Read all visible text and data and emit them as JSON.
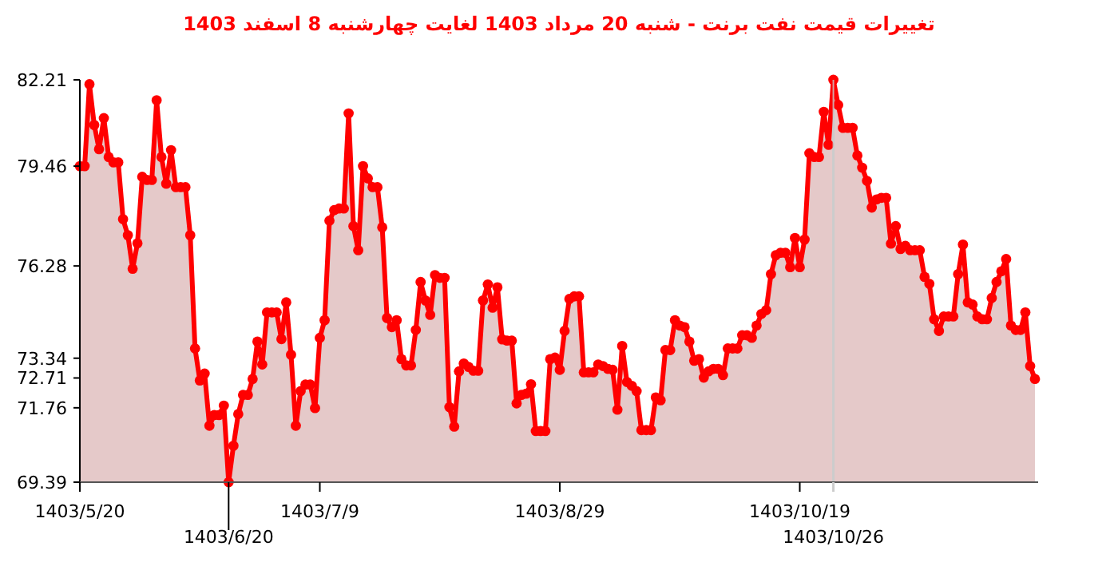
{
  "chart_data": {
    "type": "area",
    "title": "تغییرات قیمت نفت برنت - شنبه  20 مرداد 1403 لغایت  چهارشنبه  8 اسفند 1403",
    "categories": [
      "1403/5/20",
      null,
      null,
      null,
      null,
      null,
      null,
      null,
      null,
      null,
      null,
      null,
      null,
      null,
      null,
      null,
      null,
      null,
      null,
      null,
      null,
      null,
      null,
      null,
      null,
      null,
      null,
      null,
      null,
      null,
      null,
      "1403/6/20",
      null,
      null,
      null,
      null,
      null,
      null,
      null,
      null,
      null,
      null,
      null,
      null,
      null,
      null,
      null,
      null,
      null,
      null,
      "1403/7/9",
      null,
      null,
      null,
      null,
      null,
      null,
      null,
      null,
      null,
      null,
      null,
      null,
      null,
      null,
      null,
      null,
      null,
      null,
      null,
      null,
      null,
      null,
      null,
      null,
      null,
      null,
      null,
      null,
      null,
      null,
      null,
      null,
      null,
      null,
      null,
      null,
      null,
      null,
      null,
      null,
      null,
      null,
      null,
      null,
      null,
      null,
      null,
      null,
      null,
      "1403/8/29",
      null,
      null,
      null,
      null,
      null,
      null,
      null,
      null,
      null,
      null,
      null,
      null,
      null,
      null,
      null,
      null,
      null,
      null,
      null,
      null,
      null,
      null,
      null,
      null,
      null,
      null,
      null,
      null,
      null,
      null,
      null,
      null,
      null,
      null,
      null,
      null,
      null,
      null,
      null,
      null,
      null,
      null,
      null,
      null,
      null,
      null,
      null,
      null,
      null,
      "1403/10/19",
      null,
      null,
      null,
      null,
      null,
      null,
      "1403/10/26",
      null,
      null,
      null,
      null,
      null,
      null,
      null,
      null,
      null,
      null,
      null,
      null,
      null,
      null,
      null,
      null,
      null,
      null,
      null,
      null,
      null,
      null,
      null,
      null,
      null,
      null,
      null,
      null,
      null,
      null,
      null,
      null,
      null,
      null,
      null,
      null,
      null,
      null,
      null,
      null,
      null,
      null
    ],
    "series": [
      {
        "color": "#ff0000",
        "values": [
          79.46,
          79.46,
          82.07,
          80.77,
          80.0,
          80.99,
          79.75,
          79.58,
          79.58,
          77.77,
          77.26,
          76.19,
          77.0,
          79.12,
          79.02,
          79.02,
          81.56,
          79.75,
          78.9,
          79.97,
          78.79,
          78.79,
          78.79,
          77.26,
          73.65,
          72.63,
          72.85,
          71.19,
          71.53,
          71.53,
          71.83,
          69.39,
          70.55,
          71.56,
          72.17,
          72.17,
          72.68,
          73.87,
          73.14,
          74.8,
          74.8,
          74.8,
          73.95,
          75.12,
          73.45,
          71.19,
          72.29,
          72.5,
          72.5,
          71.75,
          73.99,
          74.55,
          77.72,
          78.06,
          78.11,
          78.11,
          81.14,
          77.55,
          76.78,
          79.46,
          79.07,
          78.79,
          78.79,
          77.51,
          74.62,
          74.33,
          74.55,
          73.31,
          73.11,
          73.11,
          74.24,
          75.77,
          75.18,
          74.72,
          75.99,
          75.9,
          75.9,
          71.78,
          71.16,
          72.92,
          73.17,
          73.06,
          72.94,
          72.94,
          75.18,
          75.69,
          74.95,
          75.6,
          73.94,
          73.9,
          73.9,
          71.9,
          72.17,
          72.21,
          72.51,
          71.02,
          71.02,
          71.02,
          73.31,
          73.36,
          72.97,
          74.21,
          75.23,
          75.31,
          75.31,
          72.89,
          72.89,
          72.89,
          73.14,
          73.09,
          73.0,
          72.97,
          71.7,
          73.73,
          72.58,
          72.46,
          72.29,
          71.05,
          71.05,
          71.05,
          72.09,
          72.0,
          73.6,
          73.6,
          74.55,
          74.38,
          74.33,
          73.87,
          73.26,
          73.31,
          72.72,
          72.92,
          73.0,
          73.0,
          72.8,
          73.65,
          73.65,
          73.65,
          74.07,
          74.07,
          73.99,
          74.38,
          74.75,
          74.87,
          76.02,
          76.62,
          76.7,
          76.7,
          76.24,
          77.17,
          76.24,
          77.12,
          79.87,
          79.75,
          79.75,
          81.19,
          80.14,
          82.21,
          81.41,
          80.68,
          80.68,
          80.68,
          79.8,
          79.41,
          78.99,
          78.14,
          78.4,
          78.45,
          78.45,
          76.99,
          77.55,
          76.82,
          76.92,
          76.78,
          76.78,
          76.78,
          75.93,
          75.71,
          74.58,
          74.21,
          74.67,
          74.67,
          74.67,
          76.02,
          76.96,
          75.12,
          75.05,
          74.67,
          74.58,
          74.58,
          75.26,
          75.77,
          76.11,
          76.5,
          74.38,
          74.24,
          74.24,
          74.8,
          73.09,
          72.68
        ]
      }
    ],
    "ylim": [
      69.39,
      82.21
    ],
    "yticks": [
      82.21,
      79.46,
      76.28,
      73.34,
      72.71,
      71.76,
      69.39
    ],
    "marker": "circle",
    "line_style": "solid",
    "ref_lines": [
      {
        "axis": "x",
        "value": "1403/10/26",
        "color": "#cccccc"
      }
    ]
  }
}
